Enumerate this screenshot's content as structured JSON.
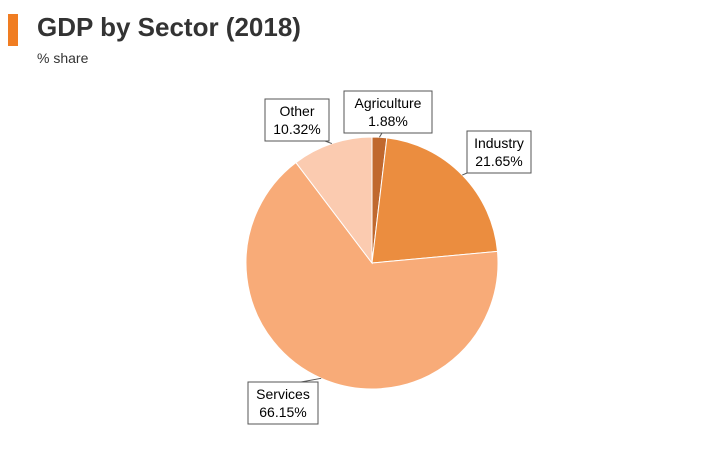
{
  "header": {
    "title": "GDP by Sector (2018)",
    "subtitle": "% share",
    "accent_color": "#f07d22"
  },
  "chart_data": {
    "type": "pie",
    "title": "GDP by Sector (2018)",
    "subtitle": "% share",
    "categories": [
      "Agriculture",
      "Industry",
      "Services",
      "Other"
    ],
    "values": [
      1.88,
      21.65,
      66.15,
      10.32
    ],
    "labels": [
      "1.88%",
      "21.65%",
      "66.15%",
      "10.32%"
    ],
    "colors": [
      "#c0682e",
      "#eb8d3f",
      "#f8ab78",
      "#fbcbb0"
    ],
    "start_angle_deg": 0,
    "direction": "clockwise",
    "legend": "none"
  }
}
